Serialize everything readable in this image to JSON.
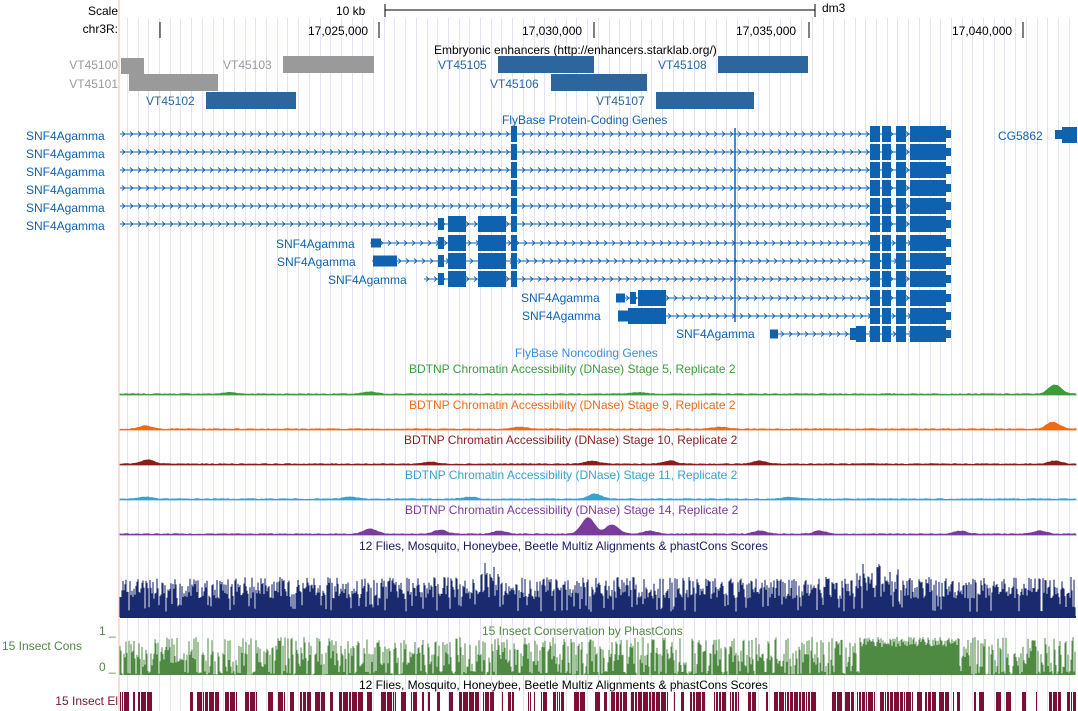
{
  "browser": {
    "scale_label": "Scale",
    "chrom_label": "chr3R:",
    "scale_text": "10 kb",
    "assembly": "dm3",
    "ruler_positions": [
      "17,025,000",
      "17,030,000",
      "17,035,000",
      "17,040,000"
    ]
  },
  "tracks": {
    "enhancers": {
      "title": "Embryonic enhancers (http://enhancers.starklab.org/)",
      "items": [
        "VT45100",
        "VT45101",
        "VT45102",
        "VT45103",
        "VT45105",
        "VT45106",
        "VT45107",
        "VT45108"
      ]
    },
    "flybase_coding": {
      "title": "FlyBase Protein-Coding Genes",
      "gene_name": "SNF4Agamma",
      "other_gene": "CG5862"
    },
    "flybase_noncoding": {
      "title": "FlyBase Noncoding Genes"
    },
    "dnase": [
      {
        "title": "BDTNP Chromatin Accessibility (DNase) Stage 5, Replicate 2",
        "color": "#3a9d3a"
      },
      {
        "title": "BDTNP Chromatin Accessibility (DNase) Stage 9, Replicate 2",
        "color": "#ef6a14"
      },
      {
        "title": "BDTNP Chromatin Accessibility (DNase) Stage 10, Replicate 2",
        "color": "#8c1c1c"
      },
      {
        "title": "BDTNP Chromatin Accessibility (DNase) Stage 11, Replicate 2",
        "color": "#3aa1cf"
      },
      {
        "title": "BDTNP Chromatin Accessibility (DNase) Stage 14, Replicate 2",
        "color": "#7b3b9d"
      }
    ],
    "multiz": {
      "title": "12 Flies, Mosquito, Honeybee, Beetle Multiz Alignments & phastCons Scores"
    },
    "insect_cons": {
      "title": "15 Insect Conservation by PhastCons",
      "side_label": "15 Insect Cons",
      "scale_max": "1 _",
      "scale_min": "0 _"
    },
    "insect_el": {
      "title": "12 Flies, Mosquito, Honeybee, Beetle Multiz Alignments & phastCons Scores",
      "side_label": "15 Insect El"
    }
  },
  "colors": {
    "gene_blue": "#0e62b0",
    "enhancer_blue": "#2c669d",
    "enhancer_gray": "#9a9a9a",
    "multiz_navy": "#1a2a6e",
    "cons_green": "#4f8a43",
    "el_maroon": "#7c0f35",
    "grid": "#e2e2f4",
    "highlight": "#fbdada"
  }
}
